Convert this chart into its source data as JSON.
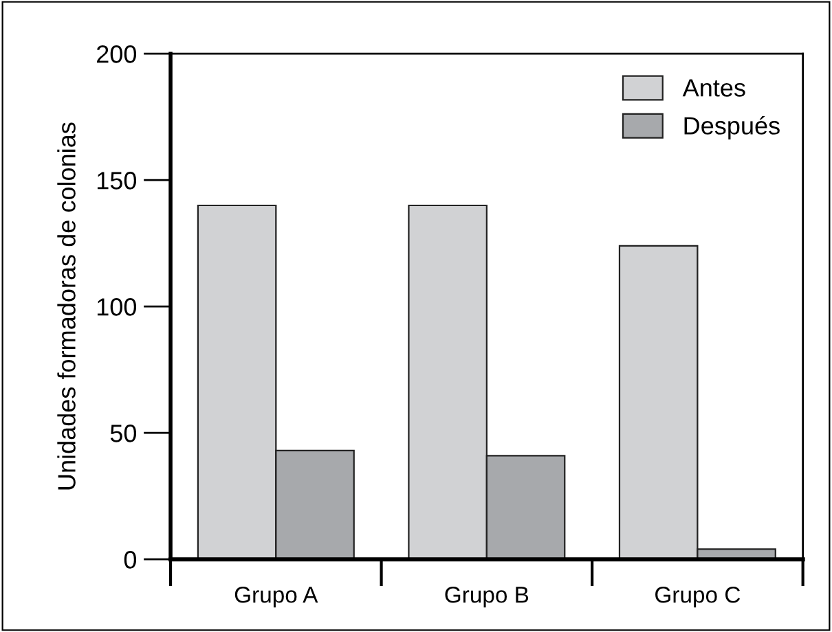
{
  "chart_data": {
    "type": "bar",
    "ylabel": "Unidades formadoras de colonias",
    "categories": [
      "Grupo A",
      "Grupo B",
      "Grupo C"
    ],
    "series": [
      {
        "name": "Antes",
        "color": "#d1d2d4",
        "values": [
          140,
          140,
          124
        ]
      },
      {
        "name": "Después",
        "color": "#a7a9ac",
        "values": [
          43,
          41,
          4
        ]
      }
    ],
    "ylim": [
      0,
      200
    ],
    "yticks": [
      0,
      50,
      100,
      150,
      200
    ],
    "grid": false,
    "legend": "top right"
  }
}
